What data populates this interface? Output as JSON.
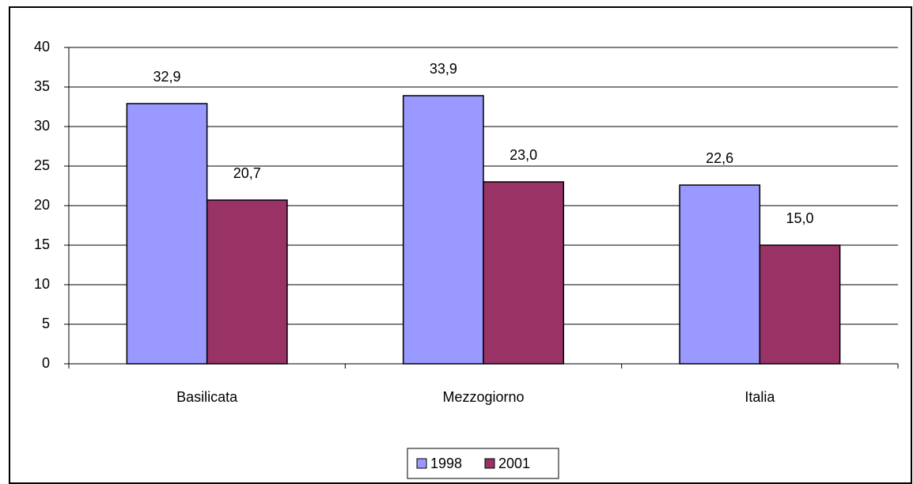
{
  "chart_data": {
    "type": "bar",
    "categories": [
      "Basilicata",
      "Mezzogiorno",
      "Italia"
    ],
    "series": [
      {
        "name": "1998",
        "color": "#9999ff",
        "values": [
          32.9,
          33.9,
          22.6
        ],
        "value_labels": [
          "32,9",
          "33,9",
          "22,6"
        ]
      },
      {
        "name": "2001",
        "color": "#993366",
        "values": [
          20.7,
          23.0,
          15.0
        ],
        "value_labels": [
          "20,7",
          "23,0",
          "15,0"
        ]
      }
    ],
    "ylim": [
      0,
      40
    ],
    "yticks": [
      0,
      5,
      10,
      15,
      20,
      25,
      30,
      35,
      40
    ],
    "grid": true,
    "legend": "bottom"
  }
}
